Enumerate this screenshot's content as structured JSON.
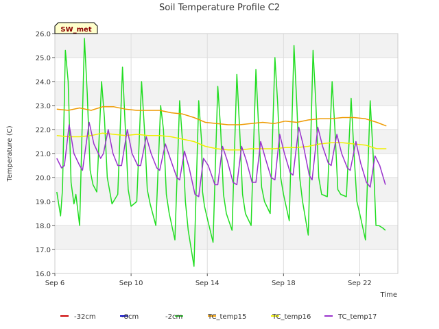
{
  "chart_data": {
    "type": "line",
    "title": "Soil Temperature Profile C2",
    "xlabel": "Time",
    "ylabel": "Temperature (C)",
    "ylim": [
      16.0,
      26.0
    ],
    "xlim": [
      6.0,
      24.0
    ],
    "y_ticks": [
      "16.0",
      "17.0",
      "18.0",
      "19.0",
      "20.0",
      "21.0",
      "22.0",
      "23.0",
      "24.0",
      "25.0",
      "26.0"
    ],
    "x_ticks": [
      {
        "label": "Sep 6",
        "value": 6
      },
      {
        "label": "Sep 10",
        "value": 10
      },
      {
        "label": "Sep 14",
        "value": 14
      },
      {
        "label": "Sep 18",
        "value": 18
      },
      {
        "label": "Sep 22",
        "value": 22
      }
    ],
    "grid": true,
    "site_badge": "SW_met",
    "legend_position": "bottom",
    "series": [
      {
        "name": "-32cm",
        "color": "#cc0000",
        "x": [],
        "y": []
      },
      {
        "name": "-8cm",
        "color": "#0000cc",
        "x": [],
        "y": []
      },
      {
        "name": "-2cm",
        "color": "#22dd22",
        "x": [
          6.1,
          6.3,
          6.4,
          6.55,
          6.7,
          6.85,
          7.0,
          7.1,
          7.3,
          7.55,
          7.7,
          7.85,
          8.0,
          8.2,
          8.45,
          8.6,
          8.75,
          9.0,
          9.3,
          9.55,
          9.7,
          9.85,
          10.0,
          10.3,
          10.55,
          10.7,
          10.85,
          11.0,
          11.3,
          11.55,
          11.7,
          11.85,
          12.0,
          12.3,
          12.55,
          12.7,
          12.85,
          13.0,
          13.3,
          13.55,
          13.7,
          13.75,
          13.85,
          14.0,
          14.3,
          14.55,
          14.7,
          14.85,
          15.0,
          15.3,
          15.55,
          15.7,
          15.85,
          16.0,
          16.3,
          16.55,
          16.7,
          16.85,
          17.0,
          17.3,
          17.55,
          17.7,
          17.85,
          18.0,
          18.3,
          18.55,
          18.7,
          18.85,
          19.0,
          19.3,
          19.55,
          19.7,
          19.85,
          20.0,
          20.3,
          20.55,
          20.7,
          20.85,
          21.0,
          21.3,
          21.55,
          21.7,
          21.85,
          22.0,
          22.3,
          22.55,
          22.7,
          22.85,
          23.0,
          23.2,
          23.35
        ],
        "y": [
          19.4,
          18.4,
          19.5,
          25.3,
          24.0,
          19.8,
          18.9,
          19.3,
          18.0,
          25.8,
          23.5,
          20.3,
          19.7,
          19.4,
          24.0,
          22.5,
          20.0,
          18.9,
          19.3,
          24.6,
          22.0,
          19.5,
          18.8,
          19.0,
          24.0,
          22.0,
          19.5,
          18.9,
          18.0,
          23.0,
          22.0,
          19.3,
          18.5,
          17.4,
          23.2,
          21.5,
          19.0,
          17.8,
          16.3,
          23.2,
          21.5,
          19.4,
          18.8,
          18.3,
          17.3,
          23.8,
          22.0,
          19.3,
          18.5,
          17.8,
          24.3,
          22.0,
          19.3,
          18.5,
          18.0,
          24.5,
          22.0,
          19.6,
          19.0,
          18.5,
          25.0,
          23.0,
          20.0,
          19.3,
          18.2,
          25.5,
          23.0,
          20.0,
          19.0,
          17.6,
          25.3,
          23.0,
          20.0,
          19.3,
          19.2,
          24.0,
          22.0,
          19.5,
          19.3,
          19.2,
          23.3,
          21.0,
          19.0,
          18.5,
          17.4,
          23.2,
          21.0,
          18.0,
          18.0,
          17.9,
          17.8
        ]
      },
      {
        "name": "TC_temp15",
        "color": "#ee9a00",
        "x": [
          6.1,
          6.7,
          7.3,
          7.9,
          8.5,
          9.1,
          9.7,
          10.3,
          10.9,
          11.5,
          12.1,
          12.7,
          13.3,
          13.9,
          14.5,
          15.1,
          15.7,
          16.3,
          16.9,
          17.5,
          18.1,
          18.7,
          19.3,
          19.9,
          20.5,
          21.1,
          21.7,
          22.3,
          22.9,
          23.4
        ],
        "y": [
          22.85,
          22.8,
          22.9,
          22.8,
          22.95,
          22.95,
          22.85,
          22.8,
          22.8,
          22.8,
          22.7,
          22.65,
          22.5,
          22.3,
          22.25,
          22.2,
          22.2,
          22.25,
          22.3,
          22.25,
          22.35,
          22.3,
          22.4,
          22.45,
          22.45,
          22.5,
          22.5,
          22.45,
          22.3,
          22.15
        ]
      },
      {
        "name": "TC_temp16",
        "color": "#f0f000",
        "x": [
          6.1,
          6.7,
          7.3,
          7.9,
          8.5,
          9.1,
          9.7,
          10.3,
          10.9,
          11.5,
          12.1,
          12.7,
          13.3,
          13.9,
          14.5,
          15.1,
          15.7,
          16.3,
          16.9,
          17.5,
          18.1,
          18.7,
          19.3,
          19.9,
          20.5,
          21.1,
          21.7,
          22.3,
          22.9,
          23.4
        ],
        "y": [
          21.75,
          21.7,
          21.7,
          21.75,
          21.85,
          21.8,
          21.75,
          21.8,
          21.75,
          21.75,
          21.7,
          21.6,
          21.5,
          21.3,
          21.2,
          21.15,
          21.15,
          21.2,
          21.2,
          21.2,
          21.25,
          21.25,
          21.3,
          21.4,
          21.45,
          21.45,
          21.4,
          21.35,
          21.2,
          21.2
        ]
      },
      {
        "name": "TC_temp17",
        "color": "#9932cc",
        "x": [
          6.1,
          6.35,
          6.5,
          6.75,
          7.0,
          7.3,
          7.45,
          7.8,
          8.05,
          8.4,
          8.55,
          8.8,
          9.05,
          9.3,
          9.5,
          9.8,
          10.05,
          10.35,
          10.5,
          10.8,
          11.05,
          11.35,
          11.5,
          11.8,
          12.05,
          12.4,
          12.55,
          12.8,
          13.05,
          13.35,
          13.55,
          13.8,
          14.05,
          14.4,
          14.55,
          14.8,
          15.05,
          15.35,
          15.55,
          15.8,
          16.05,
          16.35,
          16.55,
          16.8,
          17.05,
          17.35,
          17.55,
          17.8,
          18.05,
          18.35,
          18.5,
          18.8,
          19.05,
          19.35,
          19.5,
          19.8,
          20.05,
          20.35,
          20.5,
          20.8,
          21.05,
          21.35,
          21.5,
          21.8,
          22.05,
          22.35,
          22.55,
          22.8,
          23.05,
          23.35
        ],
        "y": [
          20.8,
          20.4,
          20.5,
          22.2,
          21.0,
          20.5,
          20.3,
          22.3,
          21.4,
          20.8,
          21.0,
          22.0,
          21.0,
          20.5,
          20.5,
          22.0,
          21.0,
          20.5,
          20.5,
          21.7,
          21.0,
          20.4,
          20.3,
          21.4,
          20.8,
          20.0,
          19.9,
          21.1,
          20.4,
          19.3,
          19.2,
          20.8,
          20.5,
          19.7,
          19.7,
          21.3,
          20.7,
          19.8,
          19.7,
          21.3,
          20.7,
          19.8,
          19.8,
          21.5,
          20.8,
          20.0,
          19.9,
          21.8,
          21.0,
          20.2,
          20.1,
          22.1,
          21.3,
          20.1,
          19.9,
          22.1,
          21.3,
          20.6,
          20.5,
          21.8,
          21.0,
          20.4,
          20.3,
          21.5,
          20.6,
          19.8,
          19.6,
          20.9,
          20.5,
          19.7
        ]
      }
    ]
  }
}
